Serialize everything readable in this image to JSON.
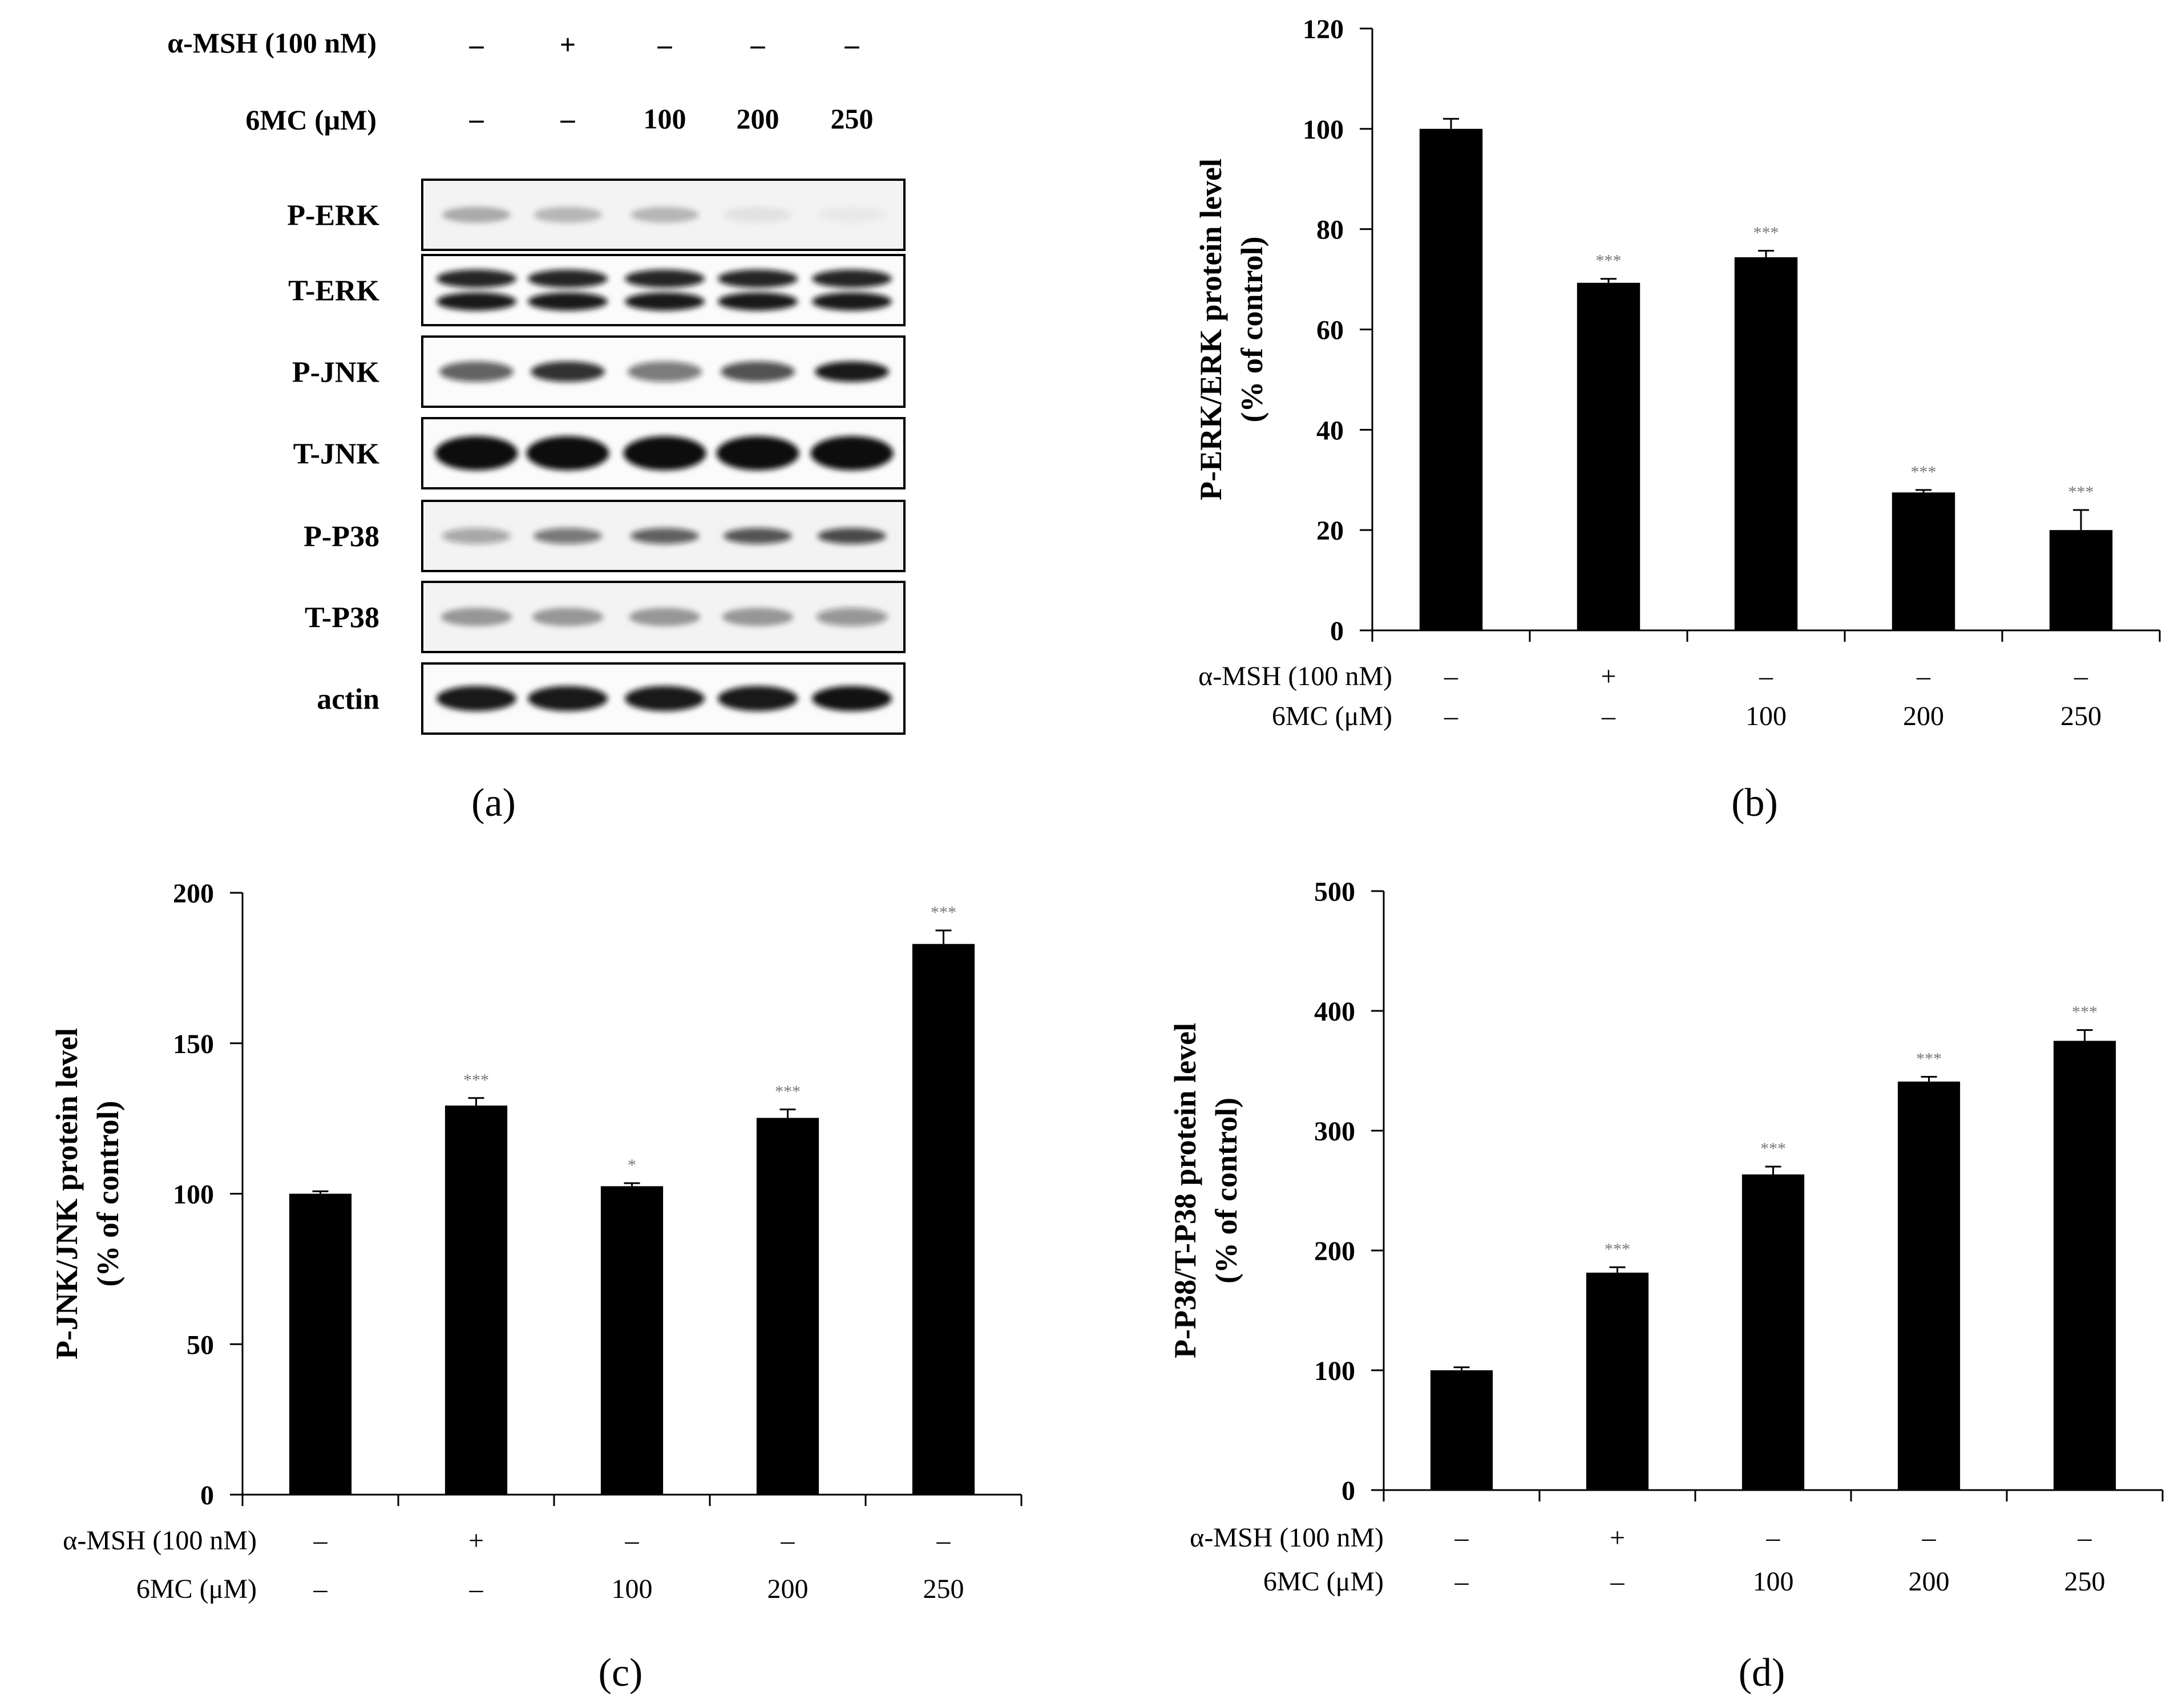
{
  "conditions": {
    "msh_label": "α-MSH (100 nM)",
    "mc_label": "6MC (μM)",
    "msh": [
      "–",
      "+",
      "–",
      "–",
      "–"
    ],
    "mc": [
      "–",
      "–",
      "100",
      "200",
      "250"
    ]
  },
  "panel_a": {
    "caption": "(a)",
    "bands": [
      "P-ERK",
      "T-ERK",
      "P-JNK",
      "T-JNK",
      "P-P38",
      "T-P38",
      "actin"
    ]
  },
  "chart_data": [
    {
      "id": "b",
      "type": "bar",
      "caption": "(b)",
      "ylabel_line1": "P-ERK/ERK protein level",
      "ylabel_line2": "(% of control)",
      "ylim": [
        0,
        120
      ],
      "yticks": [
        0,
        20,
        40,
        60,
        80,
        100,
        120
      ],
      "values": [
        100,
        69.3,
        74.4,
        27.5,
        20.0
      ],
      "errors": [
        2.0,
        0.8,
        1.3,
        0.5,
        4.0
      ],
      "significance": [
        "",
        "***",
        "***",
        "***",
        "***"
      ]
    },
    {
      "id": "c",
      "type": "bar",
      "caption": "(c)",
      "ylabel_line1": "P-JNK/JNK  protein level",
      "ylabel_line2": "(% of control)",
      "ylim": [
        0,
        200
      ],
      "yticks": [
        0,
        50,
        100,
        150,
        200
      ],
      "values": [
        100,
        129.3,
        102.5,
        125.2,
        183.0
      ],
      "errors": [
        0.8,
        2.5,
        1.0,
        2.8,
        4.5
      ],
      "significance": [
        "",
        "***",
        "*",
        "***",
        "***"
      ]
    },
    {
      "id": "d",
      "type": "bar",
      "caption": "(d)",
      "ylabel_line1": "P-P38/T-P38 protein level",
      "ylabel_line2": "(% of control)",
      "ylim": [
        0,
        500
      ],
      "yticks": [
        0,
        100,
        200,
        300,
        400,
        500
      ],
      "values": [
        100,
        181.5,
        263.5,
        341.0,
        375.0
      ],
      "errors": [
        2.5,
        4.5,
        6.5,
        4.0,
        9.0
      ],
      "significance": [
        "",
        "***",
        "***",
        "***",
        "***"
      ]
    }
  ]
}
